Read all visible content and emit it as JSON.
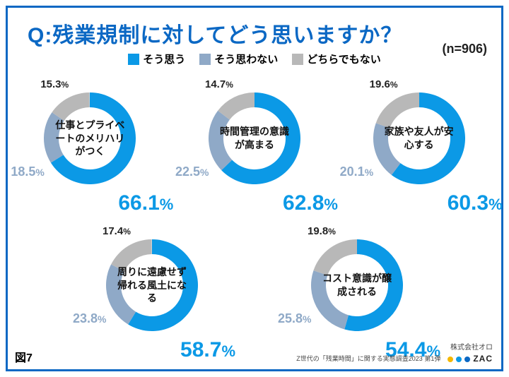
{
  "title": "Q:残業規制に対してどう思いますか？",
  "n_label": "(n=906)",
  "legend": {
    "agree": {
      "label": "そう思う",
      "color": "#0b99e6"
    },
    "disagree": {
      "label": "そう思わない",
      "color": "#8fa9c7"
    },
    "neutral": {
      "label": "どちらでもない",
      "color": "#b8b8b8"
    }
  },
  "donut_style": {
    "inner_radius": 44,
    "outer_radius": 65,
    "background": "#ffffff"
  },
  "charts": [
    {
      "row": 1,
      "center": "仕事とプライベートのメリハリがつく",
      "agree": 66.1,
      "disagree": 18.5,
      "neutral": 15.3
    },
    {
      "row": 1,
      "center": "時間管理の意識が高まる",
      "agree": 62.8,
      "disagree": 22.5,
      "neutral": 14.7
    },
    {
      "row": 1,
      "center": "家族や友人が安心する",
      "agree": 60.3,
      "disagree": 20.1,
      "neutral": 19.6
    },
    {
      "row": 2,
      "center": "周りに遠慮せず帰れる風土になる",
      "agree": 58.7,
      "disagree": 23.8,
      "neutral": 17.4
    },
    {
      "row": 2,
      "center": "コスト意識が醸成される",
      "agree": 54.4,
      "disagree": 25.8,
      "neutral": 19.8
    }
  ],
  "footer": {
    "fig": "図7",
    "company": "株式会社オロ",
    "survey": "Z世代の「残業時間」に関する実態調査2023 第1弾",
    "brand": "ZAC",
    "dot_colors": [
      "#f5b800",
      "#0b99e6",
      "#0b68c4"
    ]
  }
}
